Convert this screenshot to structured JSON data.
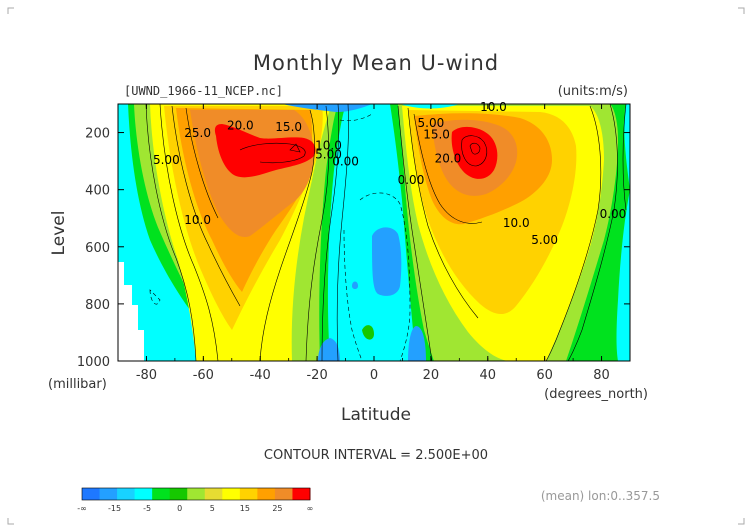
{
  "chart_data": {
    "type": "contour",
    "title": "Monthly Mean U-wind",
    "file_label": "[UWND_1966-11_NCEP.nc]",
    "units_label": "(units:m/s)",
    "xlabel": "Latitude",
    "x_units": "(degrees_north)",
    "ylabel": "Level",
    "y_units": "(millibar)",
    "xlim": [
      -90,
      90
    ],
    "ylim": [
      1000,
      100
    ],
    "x_ticks": [
      "-80",
      "-60",
      "-40",
      "-20",
      "0",
      "20",
      "40",
      "60",
      "80"
    ],
    "y_ticks": [
      "200",
      "400",
      "600",
      "800",
      "1000"
    ],
    "contour_interval_text": "CONTOUR INTERVAL = 2.500E+00",
    "footer_text": "(mean) lon:0..357.5",
    "colorbar": {
      "labels": [
        "-∞",
        "-15",
        "-5",
        "0",
        "5",
        "15",
        "25",
        "∞"
      ],
      "colors": [
        "#1e78ff",
        "#23a0ff",
        "#18d2ff",
        "#00ffff",
        "#00e21e",
        "#16c800",
        "#a0e632",
        "#e6dc32",
        "#ffff00",
        "#ffd200",
        "#ffa000",
        "#f08c28",
        "#ff0000"
      ]
    },
    "contour_labels": [
      {
        "text": "20.0",
        "x": -47,
        "y": 190
      },
      {
        "text": "15.0",
        "x": -30,
        "y": 195
      },
      {
        "text": "25.0",
        "x": -62,
        "y": 215
      },
      {
        "text": "10.0",
        "x": -16,
        "y": 260
      },
      {
        "text": "5.00",
        "x": -16,
        "y": 290
      },
      {
        "text": "0.00",
        "x": -10,
        "y": 315
      },
      {
        "text": "5.00",
        "x": -73,
        "y": 310
      },
      {
        "text": "10.0",
        "x": -62,
        "y": 520
      },
      {
        "text": "10.0",
        "x": 42,
        "y": 125
      },
      {
        "text": "5.00",
        "x": 20,
        "y": 180
      },
      {
        "text": "15.0",
        "x": 22,
        "y": 220
      },
      {
        "text": "20.0",
        "x": 26,
        "y": 305
      },
      {
        "text": "0.00",
        "x": 13,
        "y": 380
      },
      {
        "text": "10.0",
        "x": 50,
        "y": 530
      },
      {
        "text": "5.00",
        "x": 60,
        "y": 590
      },
      {
        "text": "0.00",
        "x": 84,
        "y": 500
      }
    ],
    "grid": false
  }
}
